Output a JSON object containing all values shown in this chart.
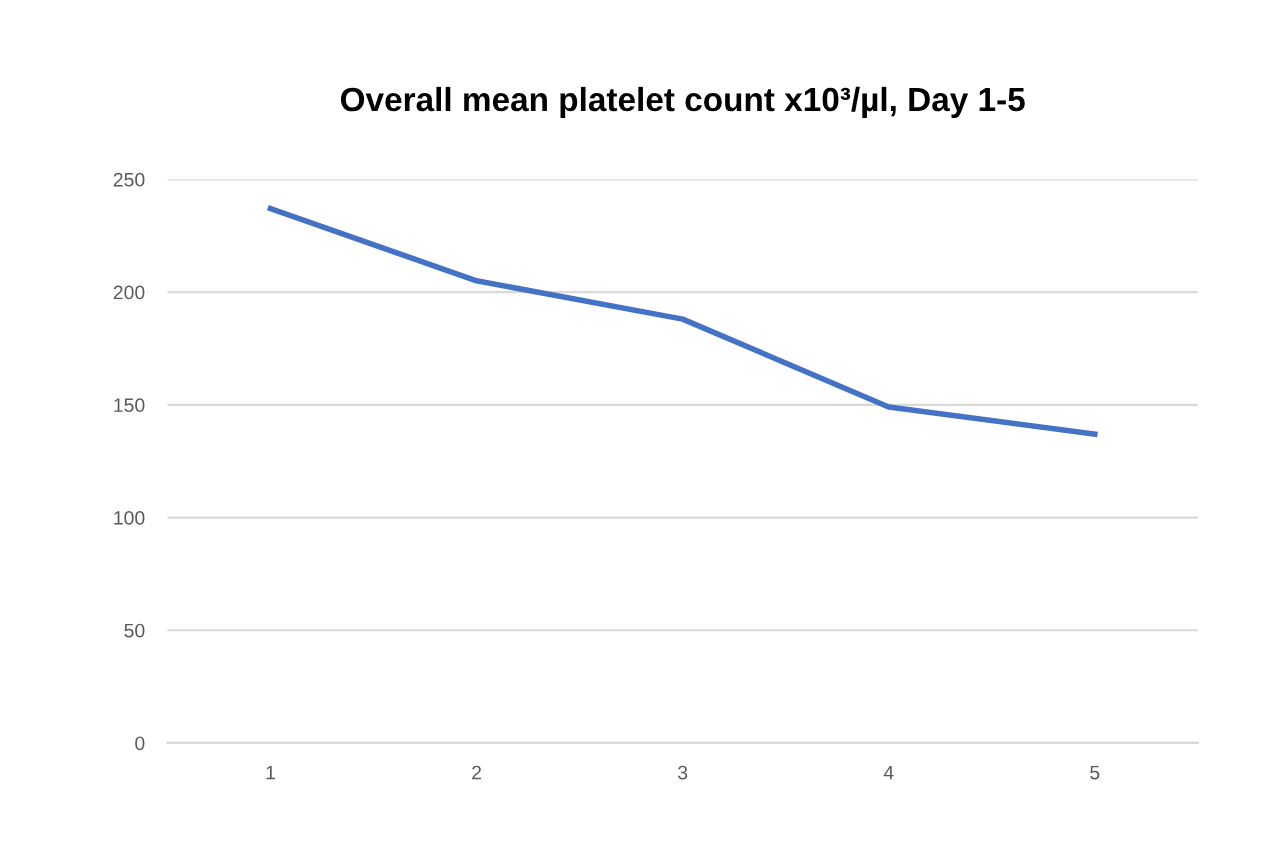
{
  "chart_data": {
    "type": "line",
    "title": "Overall mean platelet count x10³/µl, Day 1-5",
    "categories": [
      "1",
      "2",
      "3",
      "4",
      "5"
    ],
    "series": [
      {
        "color": "#4472c4",
        "values": [
          237,
          205,
          188,
          149,
          137
        ]
      }
    ],
    "ylim": [
      0,
      250
    ],
    "yticks": [
      0,
      50,
      100,
      150,
      200,
      250
    ],
    "grid": "y",
    "marker": "none",
    "line_style": "solid"
  }
}
